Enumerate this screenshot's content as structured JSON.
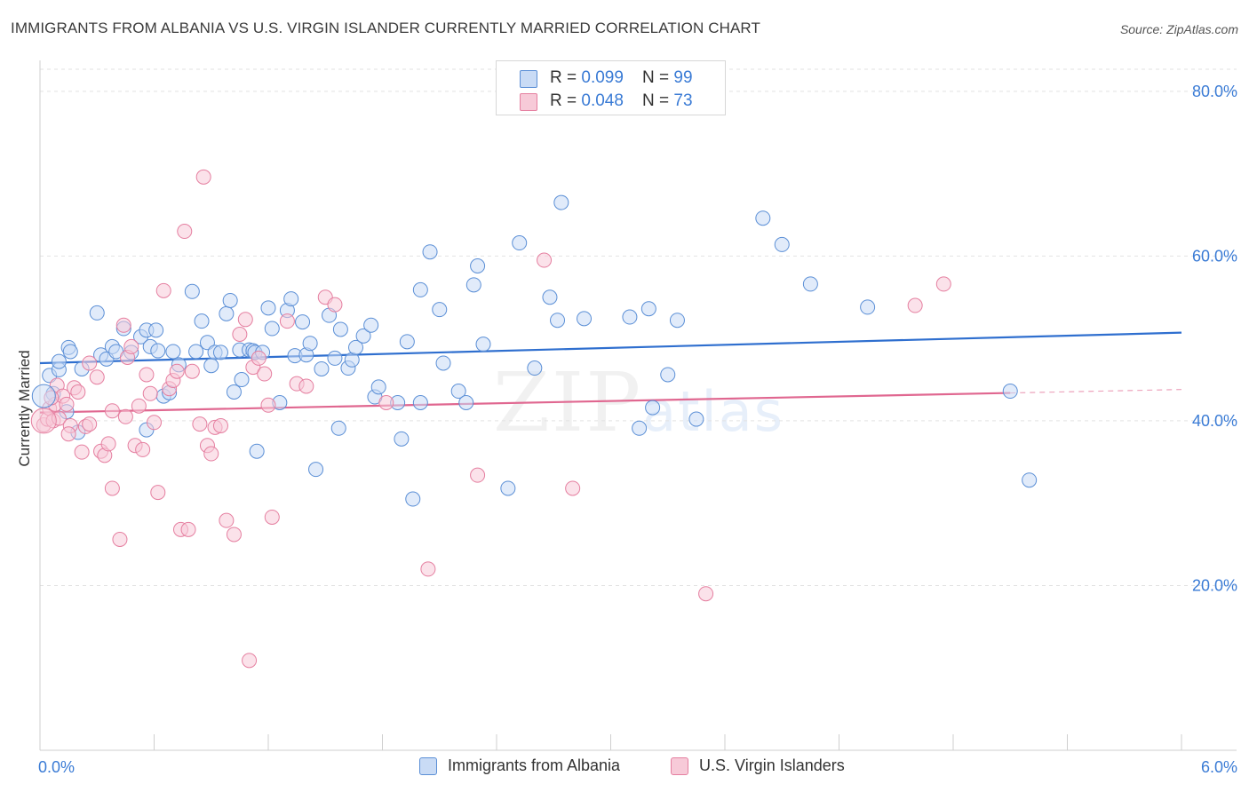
{
  "title": "IMMIGRANTS FROM ALBANIA VS U.S. VIRGIN ISLANDER CURRENTLY MARRIED CORRELATION CHART",
  "source": "Source: ZipAtlas.com",
  "watermark": {
    "zip": "ZIP",
    "atlas": "atlas"
  },
  "colors": {
    "blue": "#5b8fd6",
    "blue_fill": "#c9dbf5",
    "pink": "#e57fa0",
    "pink_fill": "#f7cad8",
    "blue_line": "#2f6fcf",
    "pink_line": "#e06790",
    "tick_text": "#3a7bd5"
  },
  "legend_top": [
    {
      "r_label": "R = ",
      "r_value": "0.099",
      "n_label": "N = ",
      "n_value": "99"
    },
    {
      "r_label": "R = ",
      "r_value": "0.048",
      "n_label": "N = ",
      "n_value": "73"
    }
  ],
  "legend_bottom": [
    "Immigrants from Albania",
    "U.S. Virgin Islanders"
  ],
  "chart_data": {
    "type": "scatter",
    "title": "IMMIGRANTS FROM ALBANIA VS U.S. VIRGIN ISLANDER CURRENTLY MARRIED CORRELATION CHART",
    "ylabel": "Currently Married",
    "xlabel": "",
    "xlim": [
      0,
      6.0
    ],
    "ylim": [
      0,
      83
    ],
    "x_tick_labels": [
      "0.0%",
      "6.0%"
    ],
    "y_ticks": [
      20,
      40,
      60,
      80
    ],
    "y_tick_labels": [
      "20.0%",
      "40.0%",
      "60.0%",
      "80.0%"
    ],
    "grid": "horizontal dashed",
    "legend_position": "top-center",
    "series": [
      {
        "name": "Immigrants from Albania",
        "R": 0.099,
        "N": 99,
        "trend": {
          "x": [
            0,
            6.0
          ],
          "y": [
            47.0,
            50.7
          ]
        },
        "points": [
          [
            0.05,
            45.5
          ],
          [
            0.07,
            43.3
          ],
          [
            0.1,
            46.2
          ],
          [
            0.1,
            47.2
          ],
          [
            0.14,
            41.1
          ],
          [
            0.15,
            48.9
          ],
          [
            0.16,
            48.4
          ],
          [
            0.2,
            38.6
          ],
          [
            0.22,
            46.3
          ],
          [
            0.3,
            53.1
          ],
          [
            0.32,
            48.0
          ],
          [
            0.35,
            47.5
          ],
          [
            0.38,
            49.0
          ],
          [
            0.4,
            48.4
          ],
          [
            0.44,
            51.2
          ],
          [
            0.48,
            48.3
          ],
          [
            0.53,
            50.2
          ],
          [
            0.56,
            51.0
          ],
          [
            0.56,
            38.9
          ],
          [
            0.58,
            49.0
          ],
          [
            0.61,
            51.0
          ],
          [
            0.62,
            48.5
          ],
          [
            0.65,
            43.0
          ],
          [
            0.68,
            43.4
          ],
          [
            0.7,
            48.4
          ],
          [
            0.73,
            46.8
          ],
          [
            0.8,
            55.7
          ],
          [
            0.82,
            48.4
          ],
          [
            0.85,
            52.1
          ],
          [
            0.88,
            49.5
          ],
          [
            0.9,
            46.7
          ],
          [
            0.92,
            48.3
          ],
          [
            0.95,
            48.3
          ],
          [
            0.98,
            53.0
          ],
          [
            1.0,
            54.6
          ],
          [
            1.02,
            43.5
          ],
          [
            1.05,
            48.6
          ],
          [
            1.06,
            45.0
          ],
          [
            1.1,
            48.6
          ],
          [
            1.12,
            48.5
          ],
          [
            1.13,
            48.3
          ],
          [
            1.14,
            36.3
          ],
          [
            1.17,
            48.3
          ],
          [
            1.2,
            53.7
          ],
          [
            1.22,
            51.2
          ],
          [
            1.26,
            42.2
          ],
          [
            1.3,
            53.4
          ],
          [
            1.32,
            54.8
          ],
          [
            1.34,
            47.9
          ],
          [
            1.38,
            52.0
          ],
          [
            1.4,
            48.0
          ],
          [
            1.42,
            49.4
          ],
          [
            1.45,
            34.1
          ],
          [
            1.48,
            46.3
          ],
          [
            1.52,
            52.8
          ],
          [
            1.55,
            47.6
          ],
          [
            1.57,
            39.1
          ],
          [
            1.58,
            51.1
          ],
          [
            1.62,
            46.4
          ],
          [
            1.64,
            47.4
          ],
          [
            1.66,
            48.9
          ],
          [
            1.7,
            50.3
          ],
          [
            1.74,
            51.6
          ],
          [
            1.76,
            42.9
          ],
          [
            1.78,
            44.1
          ],
          [
            1.88,
            42.2
          ],
          [
            1.9,
            37.8
          ],
          [
            1.93,
            49.6
          ],
          [
            1.96,
            30.5
          ],
          [
            2.0,
            55.9
          ],
          [
            2.0,
            42.2
          ],
          [
            2.05,
            60.5
          ],
          [
            2.1,
            53.5
          ],
          [
            2.12,
            47.0
          ],
          [
            2.2,
            43.6
          ],
          [
            2.24,
            42.2
          ],
          [
            2.28,
            56.5
          ],
          [
            2.3,
            58.8
          ],
          [
            2.33,
            49.3
          ],
          [
            2.46,
            31.8
          ],
          [
            2.52,
            61.6
          ],
          [
            2.6,
            46.4
          ],
          [
            2.68,
            55.0
          ],
          [
            2.72,
            52.2
          ],
          [
            2.74,
            66.5
          ],
          [
            2.86,
            52.4
          ],
          [
            3.1,
            52.6
          ],
          [
            3.15,
            39.1
          ],
          [
            3.2,
            53.6
          ],
          [
            3.22,
            41.6
          ],
          [
            3.3,
            45.6
          ],
          [
            3.35,
            52.2
          ],
          [
            3.45,
            40.2
          ],
          [
            3.8,
            64.6
          ],
          [
            3.9,
            61.4
          ],
          [
            4.05,
            56.6
          ],
          [
            4.35,
            53.8
          ],
          [
            5.1,
            43.6
          ],
          [
            5.2,
            32.8
          ]
        ]
      },
      {
        "name": "U.S. Virgin Islanders",
        "R": 0.048,
        "N": 73,
        "trend": {
          "x": [
            0,
            6.0
          ],
          "y": [
            41.0,
            43.8
          ],
          "solid_until_x": 5.1
        },
        "points": [
          [
            0.02,
            39.5
          ],
          [
            0.04,
            40.2
          ],
          [
            0.05,
            41.5
          ],
          [
            0.07,
            40.0
          ],
          [
            0.08,
            42.0
          ],
          [
            0.09,
            44.3
          ],
          [
            0.1,
            40.3
          ],
          [
            0.12,
            43.0
          ],
          [
            0.14,
            42.0
          ],
          [
            0.16,
            39.4
          ],
          [
            0.18,
            44.0
          ],
          [
            0.2,
            43.5
          ],
          [
            0.22,
            36.2
          ],
          [
            0.24,
            39.3
          ],
          [
            0.26,
            39.6
          ],
          [
            0.3,
            45.3
          ],
          [
            0.32,
            36.3
          ],
          [
            0.34,
            35.8
          ],
          [
            0.36,
            37.2
          ],
          [
            0.38,
            31.8
          ],
          [
            0.38,
            41.2
          ],
          [
            0.42,
            25.6
          ],
          [
            0.44,
            51.6
          ],
          [
            0.46,
            47.7
          ],
          [
            0.48,
            49.0
          ],
          [
            0.5,
            37.0
          ],
          [
            0.52,
            41.8
          ],
          [
            0.54,
            36.5
          ],
          [
            0.56,
            45.6
          ],
          [
            0.6,
            39.8
          ],
          [
            0.62,
            31.3
          ],
          [
            0.65,
            55.8
          ],
          [
            0.68,
            43.9
          ],
          [
            0.7,
            44.9
          ],
          [
            0.72,
            46.0
          ],
          [
            0.74,
            26.8
          ],
          [
            0.76,
            63.0
          ],
          [
            0.78,
            26.8
          ],
          [
            0.8,
            46.0
          ],
          [
            0.84,
            39.6
          ],
          [
            0.86,
            69.6
          ],
          [
            0.88,
            37.0
          ],
          [
            0.9,
            36.0
          ],
          [
            0.92,
            39.2
          ],
          [
            0.95,
            39.4
          ],
          [
            0.98,
            27.9
          ],
          [
            1.02,
            26.2
          ],
          [
            1.05,
            50.5
          ],
          [
            1.08,
            52.3
          ],
          [
            1.1,
            10.9
          ],
          [
            1.12,
            46.5
          ],
          [
            1.15,
            47.6
          ],
          [
            1.18,
            45.7
          ],
          [
            1.22,
            28.3
          ],
          [
            1.3,
            52.1
          ],
          [
            1.35,
            44.5
          ],
          [
            1.4,
            44.2
          ],
          [
            1.5,
            55.0
          ],
          [
            1.55,
            54.1
          ],
          [
            1.82,
            42.2
          ],
          [
            2.04,
            22.0
          ],
          [
            2.3,
            33.4
          ],
          [
            2.65,
            59.5
          ],
          [
            2.8,
            31.8
          ],
          [
            3.5,
            19.0
          ],
          [
            4.6,
            54.0
          ],
          [
            4.75,
            56.6
          ],
          [
            0.06,
            42.8
          ],
          [
            0.15,
            38.4
          ],
          [
            0.26,
            47.0
          ],
          [
            0.45,
            40.5
          ],
          [
            0.58,
            43.3
          ],
          [
            1.2,
            41.9
          ]
        ]
      }
    ]
  }
}
